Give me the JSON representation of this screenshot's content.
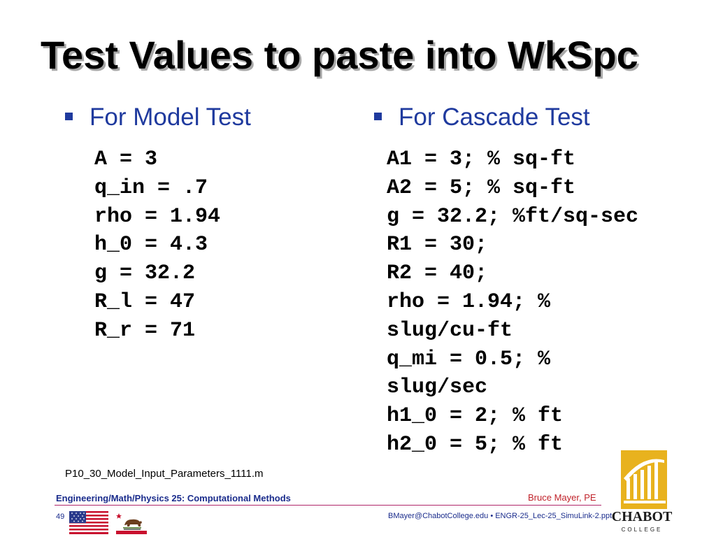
{
  "slide": {
    "title": "Test Values to paste into WkSpc"
  },
  "left_column": {
    "heading": "For Model Test",
    "lines": [
      "A = 3",
      "q_in = .7",
      "rho = 1.94",
      "h_0 = 4.3",
      "g = 32.2",
      "R_l = 47",
      "R_r = 71"
    ]
  },
  "right_column": {
    "heading": "For Cascade Test",
    "lines": [
      "A1 = 3; % sq-ft",
      "A2 = 5; % sq-ft",
      "g = 32.2; %ft/sq-sec",
      "R1 = 30;",
      "R2 = 40;",
      "rho = 1.94; %",
      "slug/cu-ft",
      "q_mi = 0.5; %",
      "slug/sec",
      "h1_0 = 2; % ft",
      "h2_0 = 5; % ft"
    ]
  },
  "filename": "P10_30_Model_Input_Parameters_1111.m",
  "footer": {
    "course": "Engineering/Math/Physics 25: Computational Methods",
    "author": "Bruce Mayer, PE",
    "page": "49",
    "email": "BMayer@ChabotCollege.edu",
    "file": "• ENGR-25_Lec-25_SimuLink-2.ppt"
  },
  "logo": {
    "name": "CHABOT",
    "sub": "COLLEGE"
  },
  "colors": {
    "bullet_text": "#1f3a9e",
    "footer_blue": "#1a2c8c",
    "footer_red": "#c0222a",
    "rule": "#b0266a",
    "logo_gold": "#e8b21e"
  }
}
